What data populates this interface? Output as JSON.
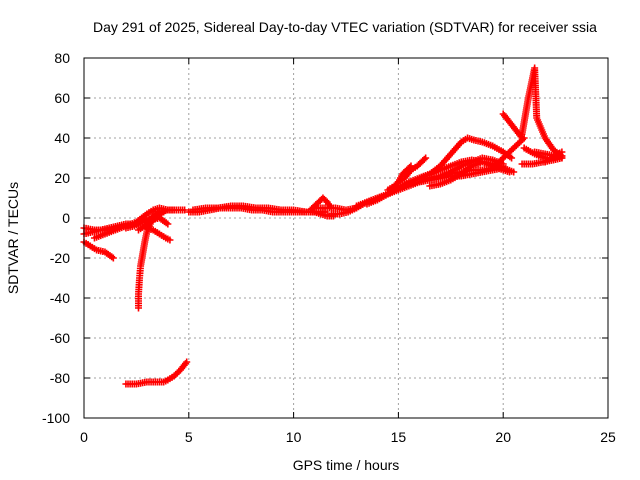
{
  "chart_data": {
    "type": "scatter",
    "title": "Day 291 of 2025, Sidereal Day-to-day VTEC variation (SDTVAR) for receiver ssia",
    "xlabel": "GPS time / hours",
    "ylabel": "SDTVAR / TECUs",
    "xlim": [
      0,
      25
    ],
    "ylim": [
      -100,
      80
    ],
    "x_ticks": [
      0,
      5,
      10,
      15,
      20,
      25
    ],
    "y_ticks": [
      -100,
      -80,
      -60,
      -40,
      -20,
      0,
      20,
      40,
      60,
      80
    ],
    "grid": true,
    "marker": "+",
    "color": "#ff0000",
    "series": [
      {
        "x": [
          0.0,
          0.3,
          0.6,
          1.0,
          1.4
        ],
        "y": [
          -12,
          -14,
          -16,
          -17,
          -20
        ]
      },
      {
        "x": [
          0.0,
          0.5,
          1.0,
          1.5,
          2.0,
          2.5
        ],
        "y": [
          -5,
          -6,
          -6,
          -5,
          -4,
          -3
        ]
      },
      {
        "x": [
          0.0,
          0.4,
          0.8,
          1.2,
          1.6,
          2.0,
          2.4,
          2.8,
          3.2,
          3.6,
          4.0
        ],
        "y": [
          -8,
          -7,
          -6,
          -5,
          -4,
          -3,
          -3,
          -2,
          0,
          3,
          4
        ]
      },
      {
        "x": [
          0.5,
          1.0,
          1.5,
          2.0,
          2.5,
          3.0,
          3.3,
          3.6,
          4.0,
          4.4,
          4.8
        ],
        "y": [
          -10,
          -8,
          -6,
          -4,
          -2,
          2,
          4,
          5,
          4,
          4,
          4
        ]
      },
      {
        "x": [
          2.0,
          2.4,
          2.8,
          3.2,
          3.6,
          4.0
        ],
        "y": [
          -5,
          -4,
          -2,
          -1,
          0,
          -3
        ]
      },
      {
        "x": [
          3.0,
          3.3,
          3.6,
          3.9,
          4.1
        ],
        "y": [
          -5,
          -6,
          -8,
          -10,
          -11
        ]
      },
      {
        "x": [
          2.6,
          2.9,
          3.2,
          3.5,
          3.8
        ],
        "y": [
          -6,
          -4,
          -2,
          1,
          3
        ]
      },
      {
        "x": [
          2.6,
          2.6,
          2.65,
          2.7,
          2.8,
          2.9,
          3.0,
          3.2,
          3.4,
          3.7,
          4.0,
          4.3
        ],
        "y": [
          -45,
          -38,
          -30,
          -24,
          -18,
          -12,
          -7,
          -2,
          1,
          3,
          4,
          4
        ]
      },
      {
        "x": [
          2.0,
          2.5,
          3.0,
          3.5,
          3.8,
          4.0,
          4.3,
          4.6,
          4.9
        ],
        "y": [
          -83,
          -83,
          -82,
          -82,
          -82,
          -81,
          -79,
          -76,
          -72
        ]
      },
      {
        "x": [
          5.0,
          5.5,
          6.0,
          6.5,
          7.0,
          7.5,
          8.0,
          8.5,
          9.0,
          9.5,
          10.0,
          10.5,
          11.0,
          11.5
        ],
        "y": [
          3,
          3,
          4,
          5,
          5,
          5,
          4,
          4,
          3,
          3,
          3,
          3,
          3,
          3
        ]
      },
      {
        "x": [
          5.2,
          5.8,
          6.4,
          7.0,
          7.6,
          8.2,
          8.8,
          9.4,
          10.0,
          10.6,
          11.2
        ],
        "y": [
          4,
          5,
          5,
          6,
          6,
          5,
          5,
          4,
          4,
          3,
          3
        ]
      },
      {
        "x": [
          10.8,
          11.0,
          11.2,
          11.4,
          11.6,
          11.8
        ],
        "y": [
          4,
          6,
          8,
          10,
          8,
          5
        ]
      },
      {
        "x": [
          11.0,
          11.3,
          11.6,
          11.9
        ],
        "y": [
          3,
          2,
          1,
          1
        ]
      },
      {
        "x": [
          11.0,
          11.5,
          12.0,
          12.5,
          13.0
        ],
        "y": [
          5,
          5,
          5,
          4,
          5
        ]
      },
      {
        "x": [
          11.8,
          12.2,
          12.6,
          13.0,
          13.5,
          14.0,
          14.5,
          15.0,
          15.5,
          16.0,
          16.5,
          17.0,
          17.5,
          18.0,
          18.5,
          19.0,
          19.5,
          20.0
        ],
        "y": [
          2,
          2,
          3,
          5,
          8,
          10,
          12,
          15,
          17,
          18,
          20,
          21,
          22,
          23,
          24,
          24,
          25,
          26
        ]
      },
      {
        "x": [
          13.0,
          13.5,
          14.0,
          14.5,
          15.0,
          15.5,
          16.0,
          16.5,
          17.0,
          17.5,
          18.0,
          18.5,
          19.0,
          19.5,
          20.0,
          20.3
        ],
        "y": [
          6,
          8,
          10,
          12,
          15,
          18,
          20,
          22,
          24,
          26,
          28,
          29,
          28,
          26,
          24,
          23
        ]
      },
      {
        "x": [
          13.5,
          14.0,
          14.5,
          15.0,
          15.5,
          16.0,
          16.5,
          17.0,
          17.5,
          18.0,
          18.5,
          19.0,
          19.5,
          20.0
        ],
        "y": [
          7,
          9,
          12,
          14,
          16,
          18,
          19,
          20,
          21,
          21,
          22,
          23,
          24,
          25
        ]
      },
      {
        "x": [
          14.5,
          14.8,
          15.0,
          15.2,
          15.4,
          15.6
        ],
        "y": [
          14,
          16,
          18,
          22,
          24,
          26
        ]
      },
      {
        "x": [
          15.0,
          15.3,
          15.6,
          15.9,
          16.1,
          16.3
        ],
        "y": [
          18,
          20,
          24,
          26,
          28,
          30
        ]
      },
      {
        "x": [
          16.0,
          16.5,
          17.0,
          17.5,
          18.0,
          18.3,
          18.6,
          19.0,
          19.5,
          20.0,
          20.4
        ],
        "y": [
          20,
          22,
          26,
          32,
          38,
          40,
          39,
          38,
          36,
          33,
          30
        ]
      },
      {
        "x": [
          16.5,
          17.0,
          17.5,
          18.0,
          18.5,
          19.0,
          19.5,
          20.0,
          20.5
        ],
        "y": [
          16,
          17,
          19,
          22,
          26,
          28,
          27,
          25,
          23
        ]
      },
      {
        "x": [
          17.0,
          17.5,
          18.0,
          18.5,
          19.0,
          19.5,
          20.0
        ],
        "y": [
          21,
          23,
          26,
          28,
          30,
          29,
          27
        ]
      },
      {
        "x": [
          19.5,
          19.8,
          20.1,
          20.4,
          20.7,
          21.0
        ],
        "y": [
          26,
          28,
          31,
          34,
          37,
          40
        ]
      },
      {
        "x": [
          20.0,
          20.3,
          20.6,
          20.9
        ],
        "y": [
          52,
          48,
          44,
          40
        ]
      },
      {
        "x": [
          20.9,
          21.0,
          21.1,
          21.2,
          21.3,
          21.4,
          21.5,
          21.6,
          22.0,
          22.4,
          22.8
        ],
        "y": [
          42,
          48,
          54,
          60,
          65,
          70,
          75,
          50,
          40,
          34,
          31
        ]
      },
      {
        "x": [
          21.0,
          21.5,
          22.0,
          22.5,
          22.8
        ],
        "y": [
          35,
          32,
          30,
          30,
          31
        ]
      },
      {
        "x": [
          20.9,
          21.4,
          21.9,
          22.4,
          22.8
        ],
        "y": [
          27,
          27,
          28,
          29,
          30
        ]
      },
      {
        "x": [
          21.5,
          22.0,
          22.5,
          22.8
        ],
        "y": [
          33,
          32,
          31,
          30
        ]
      },
      {
        "x": [
          22.0,
          22.3,
          22.6,
          22.8
        ],
        "y": [
          28,
          30,
          32,
          33
        ]
      }
    ]
  }
}
